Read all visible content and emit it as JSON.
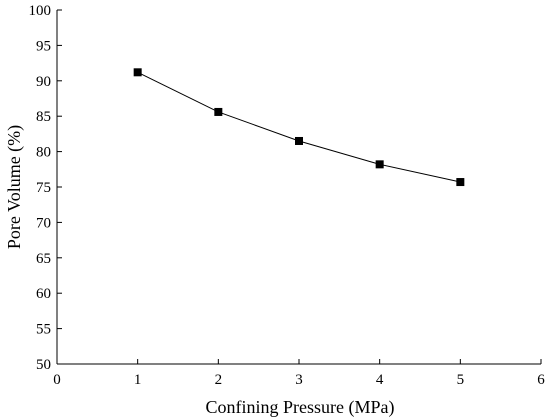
{
  "chart_data": {
    "type": "line",
    "title": "",
    "xlabel": "Confining Pressure (MPa)",
    "ylabel": "Pore Volume (%)",
    "xlim": [
      0,
      6
    ],
    "ylim": [
      50,
      100
    ],
    "x_ticks": [
      "0",
      "1",
      "2",
      "3",
      "4",
      "5",
      "6"
    ],
    "y_ticks": [
      "50",
      "55",
      "60",
      "65",
      "70",
      "75",
      "80",
      "85",
      "90",
      "95",
      "100"
    ],
    "grid": false,
    "legend": "none",
    "marker": "square",
    "color": "#000000",
    "series": [
      {
        "x": [
          1,
          2,
          3,
          4,
          5
        ],
        "values": [
          91.2,
          85.6,
          81.5,
          78.2,
          75.7
        ]
      }
    ]
  }
}
